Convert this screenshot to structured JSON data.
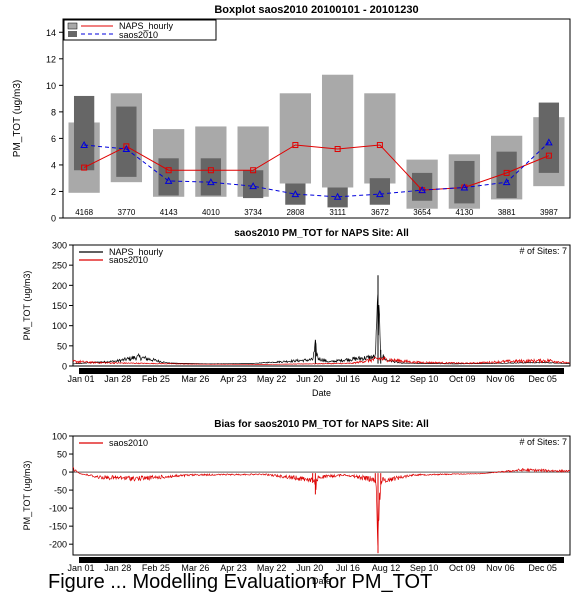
{
  "caption": "Figure ... Modelling Evaluation for PM_TOT",
  "chart_data": [
    {
      "type": "boxplot",
      "title": "Boxplot saos2010 20100101 - 20101230",
      "ylabel": "PM_TOT (ug/m3)",
      "ylim": [
        0,
        15
      ],
      "yticks": [
        0,
        2,
        4,
        6,
        8,
        10,
        12,
        14
      ],
      "legend": {
        "placement": "top-left",
        "entries": [
          "NAPS_hourly",
          "saos2010"
        ]
      },
      "counts": [
        "4168",
        "3770",
        "4143",
        "4010",
        "3734",
        "2808",
        "3111",
        "3672",
        "3654",
        "4130",
        "3881",
        "3987"
      ],
      "series": [
        {
          "name": "NAPS_hourly",
          "box_color": "#a9a9a9",
          "line_color": "#e00000",
          "boxes": [
            [
              1.9,
              7.2
            ],
            [
              2.7,
              9.4
            ],
            [
              1.6,
              6.7
            ],
            [
              1.6,
              6.9
            ],
            [
              1.6,
              6.9
            ],
            [
              2.6,
              9.4
            ],
            [
              2.3,
              10.8
            ],
            [
              2.6,
              9.4
            ],
            [
              0.7,
              4.4
            ],
            [
              0.7,
              4.8
            ],
            [
              1.4,
              6.2
            ],
            [
              2.4,
              7.6
            ]
          ],
          "medians": [
            3.8,
            5.4,
            3.6,
            3.6,
            3.6,
            5.5,
            5.2,
            5.5,
            2.1,
            2.3,
            3.4,
            4.7
          ]
        },
        {
          "name": "saos2010",
          "box_color": "#666666",
          "line_color": "#0000dd",
          "boxes": [
            [
              3.6,
              9.2
            ],
            [
              3.1,
              8.4
            ],
            [
              1.7,
              4.5
            ],
            [
              1.7,
              4.5
            ],
            [
              1.5,
              3.6
            ],
            [
              1.0,
              2.6
            ],
            [
              0.8,
              2.3
            ],
            [
              1.0,
              3.0
            ],
            [
              1.3,
              3.4
            ],
            [
              1.1,
              4.3
            ],
            [
              1.5,
              5.0
            ],
            [
              3.4,
              8.7
            ]
          ],
          "medians": [
            5.5,
            5.2,
            2.8,
            2.7,
            2.4,
            1.8,
            1.6,
            1.8,
            2.1,
            2.3,
            2.7,
            5.7
          ]
        }
      ]
    },
    {
      "type": "line",
      "title": "saos2010 PM_TOT for NAPS Site: All",
      "note": "# of Sites: 7",
      "xlabel": "Date",
      "ylabel": "PM_TOT (ug/m3)",
      "ylim": [
        0,
        300
      ],
      "yticks": [
        0,
        50,
        100,
        150,
        200,
        250,
        300
      ],
      "xlim": [
        0,
        365
      ],
      "xtick_days": [
        0,
        27,
        55,
        84,
        112,
        140,
        168,
        196,
        224,
        252,
        280,
        308,
        339
      ],
      "xtick_labels": [
        "Jan 01",
        "Jan 28",
        "Feb 25",
        "Mar 26",
        "Apr 23",
        "May 22",
        "Jun 20",
        "Jul 16",
        "Aug 12",
        "Sep 10",
        "Oct 09",
        "Nov 06",
        "Dec 05"
      ],
      "legend": {
        "placement": "top-left",
        "entries": [
          "NAPS_hourly",
          "saos2010"
        ]
      },
      "series": [
        {
          "name": "NAPS_hourly",
          "color": "#000000",
          "base": 6,
          "x": [
            0,
            15,
            32,
            48,
            70,
            100,
            130,
            150,
            176,
            178,
            180,
            188,
            200,
            222,
            224,
            226,
            230,
            240,
            260,
            280,
            300,
            320,
            345,
            365
          ],
          "y": [
            5,
            10,
            15,
            30,
            8,
            5,
            6,
            12,
            20,
            65,
            25,
            12,
            20,
            30,
            225,
            40,
            20,
            8,
            6,
            5,
            6,
            8,
            10,
            6
          ]
        },
        {
          "name": "saos2010",
          "color": "#dd0000",
          "base": 4,
          "x": [
            0,
            18,
            48,
            90,
            140,
            175,
            205,
            225,
            250,
            290,
            320,
            350,
            365
          ],
          "y": [
            15,
            10,
            8,
            5,
            4,
            6,
            8,
            25,
            12,
            8,
            15,
            18,
            8
          ]
        }
      ]
    },
    {
      "type": "line",
      "title": "Bias for saos2010 PM_TOT for NAPS Site: All",
      "note": "# of Sites: 7",
      "xlabel": "Date",
      "ylabel": "PM_TOT (ug/m3)",
      "ylim": [
        -230,
        100
      ],
      "yticks": [
        -200,
        -150,
        -100,
        -50,
        0,
        50,
        100
      ],
      "xlim": [
        0,
        365
      ],
      "xtick_days": [
        0,
        27,
        55,
        84,
        112,
        140,
        168,
        196,
        224,
        252,
        280,
        308,
        339
      ],
      "xtick_labels": [
        "Jan 01",
        "Jan 28",
        "Feb 25",
        "Mar 26",
        "Apr 23",
        "May 22",
        "Jun 20",
        "Jul 16",
        "Aug 12",
        "Sep 10",
        "Oct 09",
        "Nov 06",
        "Dec 05"
      ],
      "legend": {
        "placement": "top-left",
        "entries": [
          "saos2010"
        ]
      },
      "series": [
        {
          "name": "saos2010",
          "color": "#dd0000",
          "base": -3,
          "x": [
            0,
            5,
            20,
            48,
            90,
            140,
            176,
            178,
            180,
            200,
            222,
            224,
            226,
            250,
            300,
            330,
            365
          ],
          "y": [
            15,
            -5,
            -20,
            -25,
            -10,
            -8,
            -30,
            -62,
            -20,
            -10,
            -30,
            -225,
            -35,
            -10,
            -5,
            10,
            5
          ]
        }
      ]
    }
  ]
}
